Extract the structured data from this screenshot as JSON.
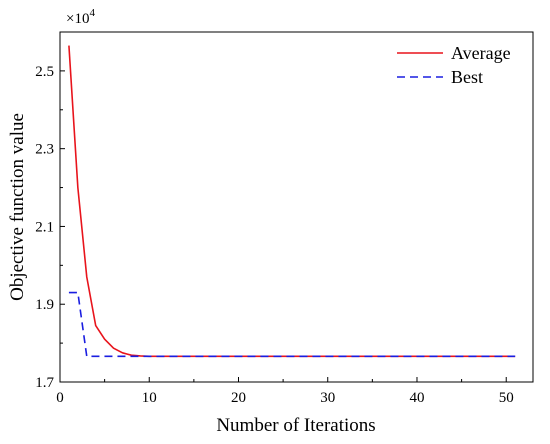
{
  "chart_data": {
    "type": "line",
    "xlabel": "Number of Iterations",
    "ylabel": "Objective function value",
    "y_multiplier": {
      "base": "×10",
      "exponent": "4"
    },
    "xlim": [
      0,
      53
    ],
    "ylim": [
      1.7,
      2.6
    ],
    "x_ticks": [
      0,
      10,
      20,
      30,
      40,
      50
    ],
    "y_ticks": [
      1.7,
      1.9,
      2.1,
      2.3,
      2.5
    ],
    "x_tick_labels": [
      "0",
      "10",
      "20",
      "30",
      "40",
      "50"
    ],
    "y_tick_labels": [
      "1.7",
      "1.9",
      "2.1",
      "2.3",
      "2.5"
    ],
    "grid": false,
    "legend_position": "top-right",
    "series": [
      {
        "name": "Average",
        "color": "#e8141c",
        "dash": "solid",
        "x": [
          1,
          2,
          3,
          4,
          5,
          6,
          7,
          8,
          9,
          10,
          12,
          15,
          20,
          25,
          30,
          35,
          40,
          45,
          51
        ],
        "y": [
          2.565,
          2.2,
          1.97,
          1.845,
          1.81,
          1.787,
          1.775,
          1.769,
          1.767,
          1.766,
          1.766,
          1.766,
          1.766,
          1.766,
          1.766,
          1.766,
          1.766,
          1.766,
          1.766
        ]
      },
      {
        "name": "Best",
        "color": "#1a1ee0",
        "dash": "dashed",
        "x": [
          1,
          2,
          3,
          4,
          6,
          8,
          10,
          20,
          30,
          40,
          51
        ],
        "y": [
          1.93,
          1.93,
          1.766,
          1.766,
          1.766,
          1.766,
          1.766,
          1.766,
          1.766,
          1.766,
          1.766
        ]
      }
    ]
  }
}
